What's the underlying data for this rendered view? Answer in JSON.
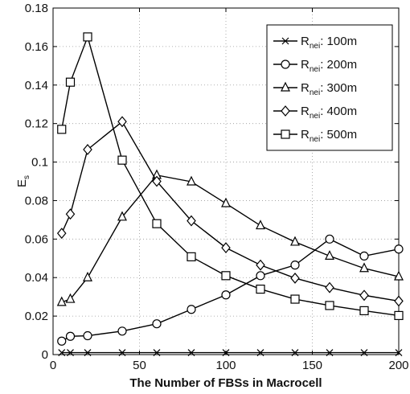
{
  "chart_data": {
    "type": "line",
    "xlabel": "The Number of FBSs in Macrocell",
    "ylabel": "E",
    "ylabel_subscript": "s",
    "xlim": [
      0,
      200
    ],
    "ylim": [
      0,
      0.18
    ],
    "x_ticks": [
      "0",
      "50",
      "100",
      "150",
      "200"
    ],
    "y_ticks": [
      "0",
      "0.02",
      "0.04",
      "0.06",
      "0.08",
      "0.1",
      "0.12",
      "0.14",
      "0.16",
      "0.18"
    ],
    "grid": true,
    "legend_position": "top-right",
    "x": [
      5,
      10,
      20,
      40,
      60,
      80,
      100,
      120,
      140,
      160,
      180,
      200
    ],
    "series": [
      {
        "name_main": "R",
        "name_sub": "nei",
        "name_value": ": 100m",
        "marker": "x",
        "values": [
          0.001,
          0.001,
          0.001,
          0.001,
          0.001,
          0.001,
          0.001,
          0.001,
          0.001,
          0.001,
          0.001,
          0.001
        ]
      },
      {
        "name_main": "R",
        "name_sub": "nei",
        "name_value": ": 200m",
        "marker": "circle",
        "values": [
          0.007,
          0.0095,
          0.0098,
          0.0122,
          0.016,
          0.0235,
          0.031,
          0.041,
          0.0465,
          0.06,
          0.0512,
          0.0548
        ]
      },
      {
        "name_main": "R",
        "name_sub": "nei",
        "name_value": ": 300m",
        "marker": "triangle",
        "values": [
          0.0272,
          0.0288,
          0.04,
          0.0715,
          0.0932,
          0.0898,
          0.0785,
          0.067,
          0.0585,
          0.0512,
          0.0448,
          0.0405
        ]
      },
      {
        "name_main": "R",
        "name_sub": "nei",
        "name_value": ": 400m",
        "marker": "diamond",
        "values": [
          0.063,
          0.073,
          0.1065,
          0.121,
          0.09,
          0.0695,
          0.0555,
          0.0465,
          0.0397,
          0.0348,
          0.0308,
          0.0278
        ]
      },
      {
        "name_main": "R",
        "name_sub": "nei",
        "name_value": ": 500m",
        "marker": "square",
        "values": [
          0.117,
          0.1415,
          0.165,
          0.101,
          0.068,
          0.0508,
          0.041,
          0.034,
          0.0288,
          0.0255,
          0.0228,
          0.0203
        ]
      }
    ]
  }
}
